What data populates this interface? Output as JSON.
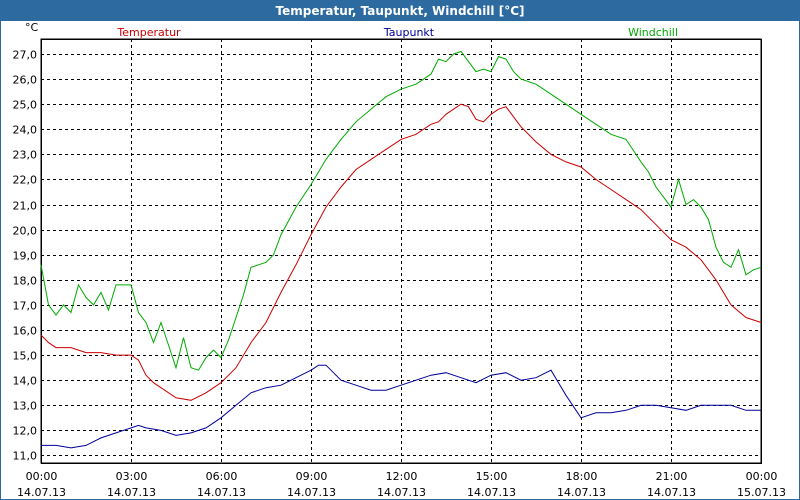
{
  "window": {
    "title": "Temperatur, Taupunkt, Windchill [°C]"
  },
  "chart_data": {
    "type": "line",
    "title": "Temperatur, Taupunkt, Windchill [°C]",
    "yunit": "°C",
    "ylim": [
      10.7,
      27.6
    ],
    "yticks": [
      "11,0",
      "12,0",
      "13,0",
      "14,0",
      "15,0",
      "16,0",
      "17,0",
      "18,0",
      "19,0",
      "20,0",
      "21,0",
      "22,0",
      "23,0",
      "24,0",
      "25,0",
      "26,0",
      "27,0"
    ],
    "yticks_values": [
      11,
      12,
      13,
      14,
      15,
      16,
      17,
      18,
      19,
      20,
      21,
      22,
      23,
      24,
      25,
      26,
      27
    ],
    "xlim": [
      0,
      24
    ],
    "xticks": [
      {
        "t": 0,
        "time": "00:00",
        "date": "14.07.13"
      },
      {
        "t": 3,
        "time": "03:00",
        "date": "14.07.13"
      },
      {
        "t": 6,
        "time": "06:00",
        "date": "14.07.13"
      },
      {
        "t": 9,
        "time": "09:00",
        "date": "14.07.13"
      },
      {
        "t": 12,
        "time": "12:00",
        "date": "14.07.13"
      },
      {
        "t": 15,
        "time": "15:00",
        "date": "14.07.13"
      },
      {
        "t": 18,
        "time": "18:00",
        "date": "14.07.13"
      },
      {
        "t": 21,
        "time": "21:00",
        "date": "14.07.13"
      },
      {
        "t": 24,
        "time": "00:00",
        "date": "15.07.13"
      }
    ],
    "grid": true,
    "legend_position": "top",
    "series": [
      {
        "name": "Temperatur",
        "color": "#cc0000",
        "x": [
          0,
          0.25,
          0.5,
          1,
          1.5,
          2,
          2.5,
          3,
          3.25,
          3.5,
          3.75,
          4,
          4.5,
          5,
          5.5,
          6,
          6.5,
          7,
          7.5,
          8,
          8.5,
          9,
          9.5,
          10,
          10.5,
          11,
          11.5,
          12,
          12.5,
          13,
          13.25,
          13.5,
          13.75,
          14,
          14.25,
          14.5,
          14.75,
          15,
          15.25,
          15.5,
          15.75,
          16,
          16.5,
          17,
          17.5,
          18,
          18.5,
          19,
          19.5,
          20,
          20.5,
          21,
          21.5,
          22,
          22.5,
          23,
          23.5,
          24
        ],
        "y": [
          15.8,
          15.5,
          15.3,
          15.3,
          15.1,
          15.1,
          15.0,
          15.0,
          14.8,
          14.2,
          13.9,
          13.7,
          13.3,
          13.2,
          13.5,
          13.9,
          14.5,
          15.5,
          16.3,
          17.5,
          18.6,
          19.8,
          20.9,
          21.7,
          22.4,
          22.8,
          23.2,
          23.6,
          23.8,
          24.2,
          24.3,
          24.6,
          24.8,
          25.0,
          24.9,
          24.4,
          24.3,
          24.6,
          24.8,
          24.9,
          24.5,
          24.1,
          23.5,
          23.0,
          22.7,
          22.5,
          22.0,
          21.6,
          21.2,
          20.8,
          20.2,
          19.6,
          19.3,
          18.8,
          18.0,
          17.0,
          16.5,
          16.3
        ]
      },
      {
        "name": "Taupunkt",
        "color": "#000099",
        "x": [
          0,
          0.5,
          1,
          1.5,
          2,
          2.5,
          3,
          3.25,
          3.5,
          4,
          4.5,
          5,
          5.5,
          6,
          6.5,
          7,
          7.5,
          8,
          8.5,
          9,
          9.25,
          9.5,
          9.75,
          10,
          10.5,
          11,
          11.5,
          12,
          12.5,
          13,
          13.5,
          14,
          14.5,
          15,
          15.5,
          16,
          16.5,
          17,
          17.5,
          18,
          18.5,
          19,
          19.5,
          20,
          20.5,
          21,
          21.5,
          22,
          22.5,
          23,
          23.5,
          24
        ],
        "y": [
          11.4,
          11.4,
          11.3,
          11.4,
          11.7,
          11.9,
          12.1,
          12.2,
          12.1,
          12.0,
          11.8,
          11.9,
          12.1,
          12.5,
          13.0,
          13.5,
          13.7,
          13.8,
          14.1,
          14.4,
          14.6,
          14.6,
          14.3,
          14.0,
          13.8,
          13.6,
          13.6,
          13.8,
          14.0,
          14.2,
          14.3,
          14.1,
          13.9,
          14.2,
          14.3,
          14.0,
          14.1,
          14.4,
          13.4,
          12.5,
          12.7,
          12.7,
          12.8,
          13.0,
          13.0,
          12.9,
          12.8,
          13.0,
          13.0,
          13.0,
          12.8,
          12.8
        ]
      },
      {
        "name": "Windchill",
        "color": "#00aa00",
        "x": [
          0,
          0.25,
          0.5,
          0.75,
          1,
          1.25,
          1.5,
          1.75,
          2,
          2.25,
          2.5,
          3,
          3.25,
          3.5,
          3.75,
          4,
          4.25,
          4.5,
          4.75,
          5,
          5.25,
          5.5,
          5.75,
          6,
          6.25,
          6.5,
          6.75,
          7,
          7.25,
          7.5,
          7.75,
          8,
          8.5,
          9,
          9.5,
          10,
          10.5,
          11,
          11.5,
          12,
          12.5,
          13,
          13.25,
          13.5,
          13.75,
          14,
          14.25,
          14.5,
          14.75,
          15,
          15.25,
          15.5,
          15.75,
          16,
          16.5,
          17,
          17.5,
          18,
          18.5,
          19,
          19.5,
          20,
          20.25,
          20.5,
          20.75,
          21,
          21.25,
          21.5,
          21.75,
          22,
          22.25,
          22.5,
          22.75,
          23,
          23.25,
          23.5,
          23.75,
          24
        ],
        "y": [
          18.6,
          17.0,
          16.6,
          17.0,
          16.7,
          17.8,
          17.3,
          17.0,
          17.5,
          16.8,
          17.8,
          17.8,
          16.7,
          16.3,
          15.5,
          16.3,
          15.4,
          14.5,
          15.7,
          14.5,
          14.4,
          14.9,
          15.2,
          14.9,
          15.6,
          16.5,
          17.4,
          18.5,
          18.6,
          18.7,
          19.0,
          19.8,
          20.9,
          21.8,
          22.8,
          23.6,
          24.3,
          24.8,
          25.3,
          25.6,
          25.8,
          26.2,
          26.8,
          26.7,
          27.0,
          27.1,
          26.7,
          26.3,
          26.4,
          26.3,
          26.9,
          26.8,
          26.3,
          26.0,
          25.8,
          25.4,
          25.0,
          24.6,
          24.2,
          23.8,
          23.6,
          22.7,
          22.3,
          21.7,
          21.3,
          20.9,
          22.0,
          21.0,
          21.2,
          20.9,
          20.4,
          19.3,
          18.7,
          18.5,
          19.2,
          18.2,
          18.4,
          18.5
        ]
      }
    ]
  }
}
